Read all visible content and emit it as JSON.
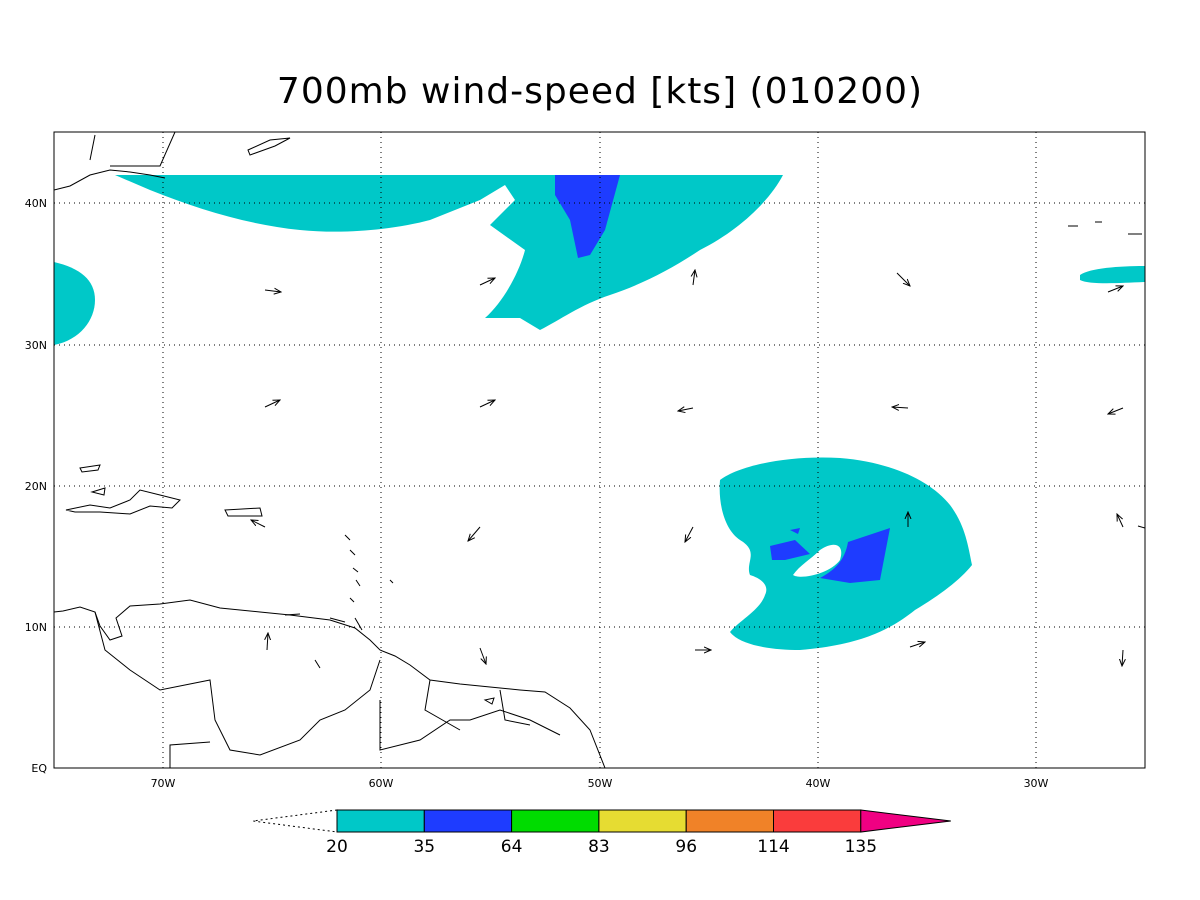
{
  "title": "700mb wind-speed [kts] (010200)",
  "x_axis": {
    "labels": [
      "70W",
      "60W",
      "50W",
      "40W",
      "30W"
    ]
  },
  "y_axis": {
    "labels": [
      "EQ",
      "10N",
      "20N",
      "30N",
      "40N"
    ]
  },
  "colorbar": {
    "levels": [
      20,
      35,
      64,
      83,
      96,
      114,
      135
    ],
    "colors": [
      "#ffffff",
      "#00c8c8",
      "#1e3cff",
      "#00dc00",
      "#e6dc32",
      "#f08228",
      "#fa3c3c",
      "#f00082"
    ]
  }
}
